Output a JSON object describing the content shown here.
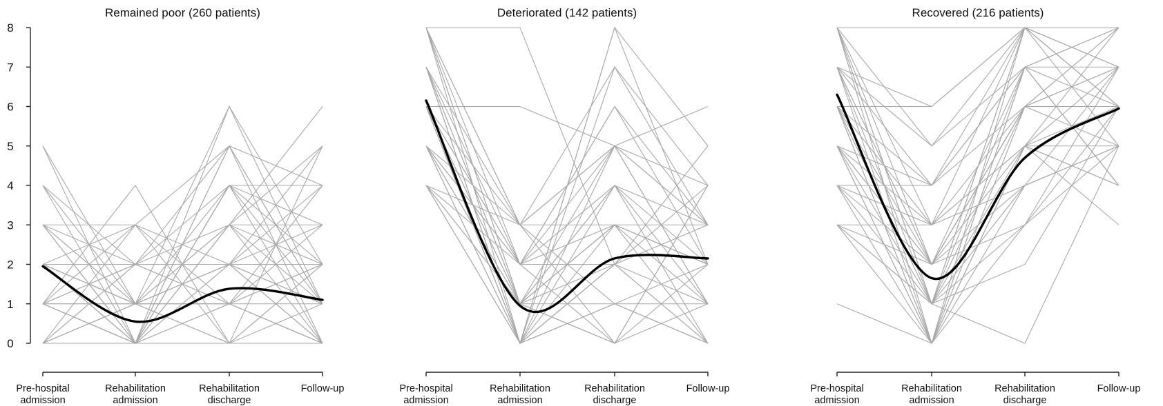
{
  "chart_data": {
    "type": "line",
    "x_categories": [
      [
        "Pre-hospital",
        "admission"
      ],
      [
        "Rehabilitation",
        "admission"
      ],
      [
        "Rehabilitation",
        "discharge"
      ],
      [
        "Follow-up"
      ]
    ],
    "ylim": [
      0,
      8
    ],
    "yticks": [
      "0",
      "1",
      "2",
      "3",
      "4",
      "5",
      "6",
      "7",
      "8"
    ],
    "grid": false,
    "colors": {
      "individual": "#a9a9a9",
      "mean": "#000000"
    },
    "panels": [
      {
        "title": "Remained poor (260 patients)",
        "mean": [
          1.95,
          0.55,
          1.38,
          1.1
        ],
        "trajectories": [
          [
            5,
            0,
            4,
            2
          ],
          [
            5,
            1,
            2,
            0
          ],
          [
            4,
            1,
            6,
            1
          ],
          [
            4,
            0,
            3,
            5
          ],
          [
            4,
            2,
            1,
            0
          ],
          [
            3,
            0,
            2,
            4
          ],
          [
            3,
            1,
            1,
            0
          ],
          [
            3,
            3,
            0,
            2
          ],
          [
            3,
            2,
            3,
            6
          ],
          [
            3,
            0,
            5,
            1
          ],
          [
            2,
            0,
            4,
            4
          ],
          [
            2,
            1,
            2,
            3
          ],
          [
            2,
            1,
            0,
            5
          ],
          [
            2,
            3,
            5,
            1
          ],
          [
            2,
            0,
            1,
            2
          ],
          [
            2,
            2,
            2,
            0
          ],
          [
            2,
            1,
            3,
            1
          ],
          [
            2,
            0,
            6,
            2
          ],
          [
            1,
            1,
            1,
            1
          ],
          [
            1,
            2,
            2,
            2
          ],
          [
            1,
            0,
            5,
            4
          ],
          [
            1,
            4,
            0,
            0
          ],
          [
            1,
            1,
            4,
            3
          ],
          [
            1,
            3,
            2,
            1
          ],
          [
            1,
            0,
            1,
            0
          ],
          [
            1,
            0,
            3,
            2
          ],
          [
            0,
            1,
            2,
            5
          ],
          [
            0,
            0,
            4,
            1
          ],
          [
            0,
            2,
            1,
            3
          ],
          [
            0,
            1,
            0,
            2
          ],
          [
            0,
            0,
            3,
            0
          ],
          [
            0,
            3,
            1,
            4
          ],
          [
            0,
            0,
            0,
            1
          ],
          [
            0,
            1,
            2,
            0
          ],
          [
            1,
            0,
            4,
            4
          ],
          [
            2,
            1,
            3,
            3
          ],
          [
            0,
            2,
            4,
            0
          ],
          [
            3,
            1,
            1,
            2
          ],
          [
            1,
            2,
            5,
            0
          ],
          [
            2,
            0,
            2,
            1
          ]
        ]
      },
      {
        "title": "Deteriorated (142 patients)",
        "mean": [
          6.15,
          0.95,
          2.15,
          2.15
        ],
        "trajectories": [
          [
            8,
            8,
            2,
            0
          ],
          [
            8,
            3,
            7,
            4
          ],
          [
            8,
            2,
            5,
            1
          ],
          [
            8,
            0,
            8,
            2
          ],
          [
            8,
            1,
            4,
            3
          ],
          [
            7,
            3,
            5,
            6
          ],
          [
            7,
            2,
            6,
            2
          ],
          [
            7,
            0,
            4,
            1
          ],
          [
            7,
            1,
            3,
            0
          ],
          [
            7,
            0,
            7,
            3
          ],
          [
            6,
            6,
            5,
            3
          ],
          [
            6,
            2,
            3,
            2
          ],
          [
            6,
            1,
            0,
            4
          ],
          [
            6,
            0,
            2,
            1
          ],
          [
            6,
            3,
            1,
            0
          ],
          [
            6,
            0,
            8,
            5
          ],
          [
            5,
            2,
            4,
            2
          ],
          [
            5,
            1,
            2,
            0
          ],
          [
            5,
            0,
            5,
            3
          ],
          [
            5,
            3,
            0,
            4
          ],
          [
            5,
            1,
            3,
            1
          ],
          [
            4,
            0,
            1,
            2
          ],
          [
            4,
            2,
            6,
            3
          ],
          [
            4,
            1,
            4,
            0
          ],
          [
            4,
            0,
            2,
            5
          ],
          [
            8,
            3,
            3,
            2
          ],
          [
            7,
            1,
            1,
            1
          ],
          [
            6,
            2,
            2,
            3
          ],
          [
            5,
            0,
            3,
            2
          ],
          [
            4,
            3,
            5,
            1
          ],
          [
            8,
            1,
            0,
            2
          ],
          [
            7,
            0,
            2,
            4
          ],
          [
            6,
            1,
            3,
            3
          ],
          [
            6,
            0,
            1,
            0
          ],
          [
            5,
            2,
            0,
            1
          ],
          [
            4,
            1,
            5,
            4
          ]
        ]
      },
      {
        "title": "Recovered (216 patients)",
        "mean": [
          6.3,
          1.65,
          4.7,
          5.95
        ],
        "trajectories": [
          [
            8,
            8,
            8,
            8
          ],
          [
            8,
            2,
            6,
            5
          ],
          [
            8,
            0,
            7,
            6
          ],
          [
            8,
            1,
            8,
            7
          ],
          [
            8,
            3,
            5,
            4
          ],
          [
            7,
            4,
            8,
            6
          ],
          [
            7,
            1,
            6,
            8
          ],
          [
            7,
            0,
            5,
            7
          ],
          [
            7,
            2,
            4,
            5
          ],
          [
            7,
            5,
            7,
            4
          ],
          [
            6,
            6,
            8,
            7
          ],
          [
            6,
            3,
            6,
            6
          ],
          [
            6,
            0,
            7,
            8
          ],
          [
            6,
            1,
            4,
            5
          ],
          [
            6,
            2,
            5,
            3
          ],
          [
            5,
            4,
            6,
            7
          ],
          [
            5,
            0,
            8,
            6
          ],
          [
            5,
            2,
            7,
            4
          ],
          [
            5,
            1,
            3,
            5
          ],
          [
            5,
            3,
            5,
            8
          ],
          [
            4,
            2,
            6,
            6
          ],
          [
            4,
            0,
            4,
            7
          ],
          [
            4,
            1,
            8,
            5
          ],
          [
            4,
            4,
            7,
            4
          ],
          [
            3,
            0,
            5,
            6
          ],
          [
            3,
            2,
            6,
            7
          ],
          [
            3,
            1,
            7,
            8
          ],
          [
            3,
            3,
            4,
            5
          ],
          [
            1,
            0,
            3,
            6
          ],
          [
            8,
            1,
            0,
            5
          ],
          [
            7,
            2,
            3,
            7
          ],
          [
            6,
            1,
            2,
            6
          ],
          [
            5,
            0,
            6,
            8
          ],
          [
            4,
            3,
            8,
            6
          ],
          [
            3,
            1,
            5,
            4
          ],
          [
            8,
            5,
            8,
            7
          ],
          [
            6,
            4,
            7,
            7
          ],
          [
            7,
            6,
            8,
            8
          ],
          [
            5,
            2,
            6,
            6
          ],
          [
            6,
            0,
            5,
            5
          ]
        ]
      }
    ]
  }
}
